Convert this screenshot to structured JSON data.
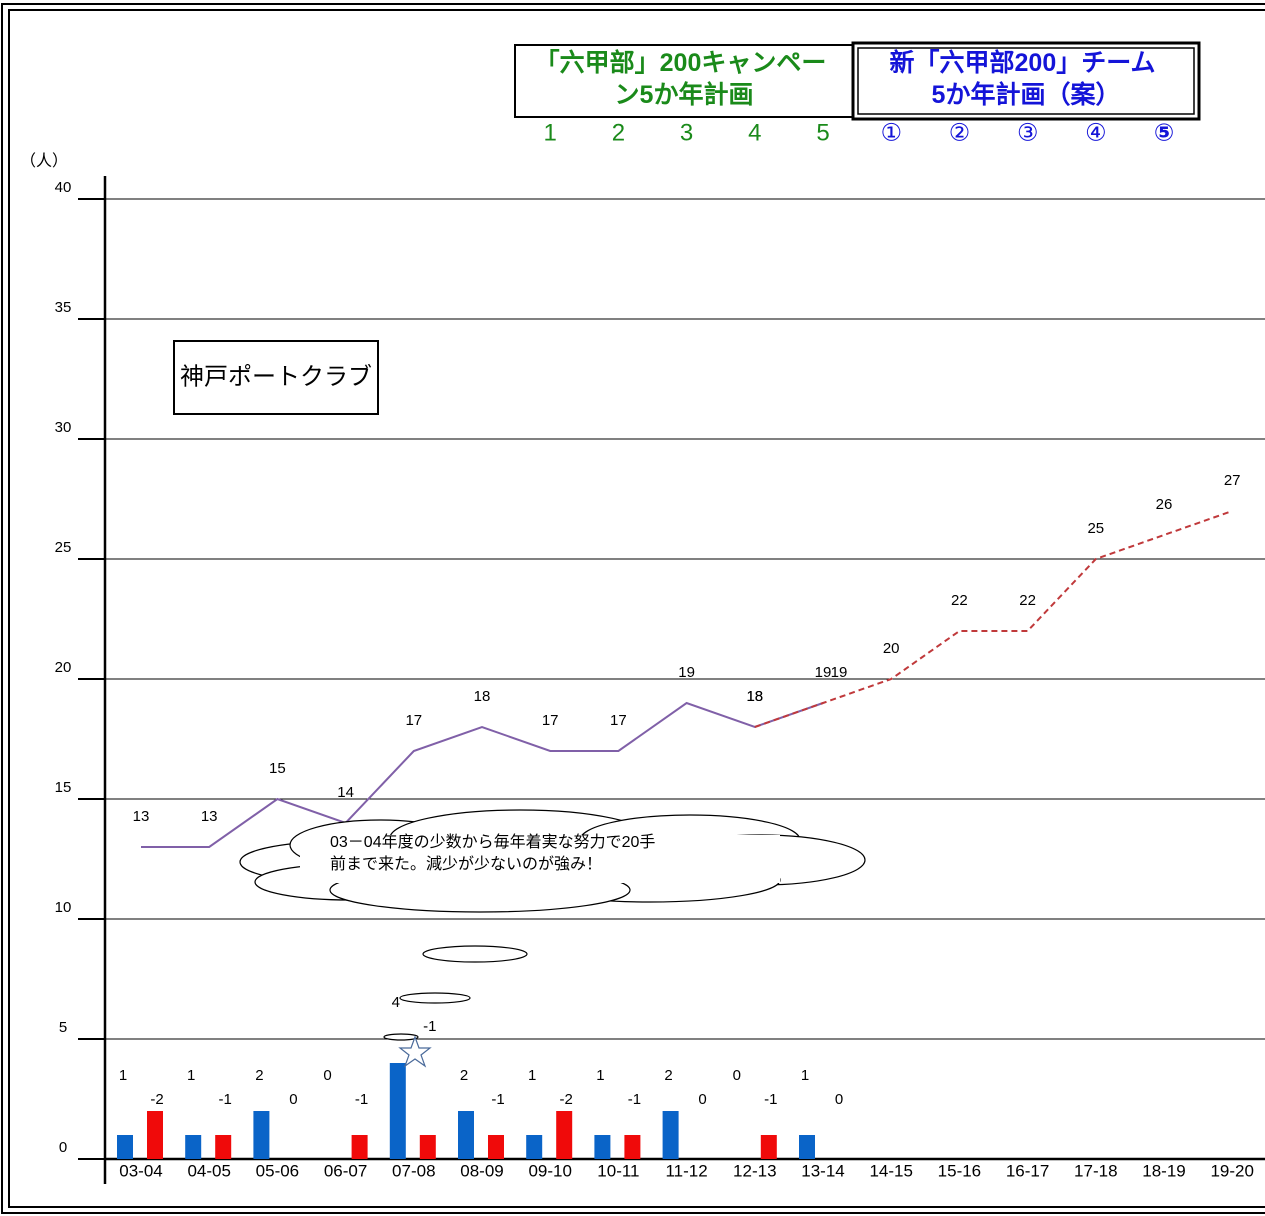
{
  "chart_data": {
    "type": "line",
    "y_unit": "（人）",
    "annotation_box": "神戸ポートクラブ",
    "callout": [
      "03－04年度の少数から毎年着実な努力で20手",
      "前まで来た。減少が少ないのが強み！"
    ],
    "plans": [
      {
        "title_lines": [
          "「六甲部」200キャンペー",
          "ン5か年計画"
        ],
        "years": [
          "1",
          "2",
          "3",
          "4",
          "5"
        ],
        "color": "#1a8a1a"
      },
      {
        "title_lines": [
          "新「六甲部200」チーム",
          "5か年計画（案）"
        ],
        "years": [
          "①",
          "②",
          "③",
          "④",
          "⑤"
        ],
        "color": "#1414d8"
      }
    ],
    "categories": [
      "03-04",
      "04-05",
      "05-06",
      "06-07",
      "07-08",
      "08-09",
      "09-10",
      "10-11",
      "11-12",
      "12-13",
      "13-14",
      "14-15",
      "15-16",
      "16-17",
      "17-18",
      "18-19",
      "19-20"
    ],
    "series": [
      {
        "color": "#8060a8",
        "dash": false,
        "values": [
          13,
          13,
          15,
          14,
          17,
          18,
          17,
          17,
          19,
          18,
          19,
          null,
          null,
          null,
          null,
          null,
          null
        ]
      },
      {
        "color": "#c0393b",
        "dash": true,
        "values": [
          null,
          null,
          null,
          null,
          null,
          null,
          null,
          null,
          null,
          18,
          19,
          20,
          22,
          22,
          25,
          26,
          27
        ]
      }
    ],
    "bar_series": [
      {
        "type": "bar",
        "color": "#0a64c8",
        "values": [
          1,
          1,
          2,
          0,
          4,
          2,
          1,
          1,
          2,
          0,
          1
        ]
      },
      {
        "type": "bar",
        "color": "#f00a0a",
        "values": [
          -2,
          -1,
          0,
          -1,
          -1,
          -1,
          -2,
          -1,
          0,
          -1,
          0
        ]
      }
    ],
    "ylim": [
      0,
      40
    ],
    "yticks": [
      0,
      5,
      10,
      15,
      20,
      25,
      30,
      35,
      40
    ],
    "grid": true
  }
}
